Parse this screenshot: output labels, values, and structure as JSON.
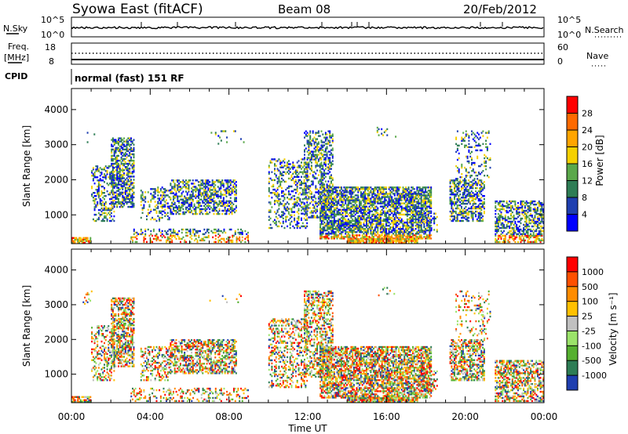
{
  "header": {
    "station": "Syowa East (fitACF)",
    "beam": "Beam 08",
    "date": "20/Feb/2012"
  },
  "top_panels": {
    "nsky_label": "N.Sky",
    "nsearch_label": "N.Search",
    "nsky_ticks": [
      "10^5",
      "10^0"
    ],
    "nsearch_ticks": [
      "10^5",
      "10^0"
    ],
    "freq_label": "Freq.",
    "freq_unit": "[MHz]",
    "freq_ticks": [
      "18",
      "8"
    ],
    "nave_label": "Nave",
    "nave_ticks": [
      "60",
      "0"
    ],
    "cpid_label": "CPID",
    "cpid_text": "normal (fast) 151 RF"
  },
  "chart_data": [
    {
      "type": "heatmap",
      "name": "power",
      "xlabel": "",
      "ylabel": "Slant Range [km]",
      "x_ticks": [],
      "y_ticks": [
        "1000",
        "2000",
        "3000",
        "4000"
      ],
      "ylim": [
        180,
        4600
      ],
      "xlim_hours": [
        0,
        24
      ],
      "colorbar": {
        "label": "Power [dB]",
        "ticks": [
          "4",
          "8",
          "12",
          "16",
          "20",
          "24",
          "28"
        ],
        "colors": [
          "#0000ff",
          "#1f3fb0",
          "#2e7d55",
          "#5aa84a",
          "#f5d000",
          "#ffa500",
          "#ff6a00",
          "#ff0000"
        ]
      }
    },
    {
      "type": "heatmap",
      "name": "velocity",
      "xlabel": "Time UT",
      "ylabel": "Slant Range [km]",
      "x_ticks": [
        "00:00",
        "04:00",
        "08:00",
        "12:00",
        "16:00",
        "20:00",
        "00:00"
      ],
      "y_ticks": [
        "1000",
        "2000",
        "3000",
        "4000"
      ],
      "ylim": [
        180,
        4600
      ],
      "xlim_hours": [
        0,
        24
      ],
      "colorbar": {
        "label": "Velocity [m s⁻¹]",
        "ticks": [
          "1000",
          "500",
          "100",
          "25",
          "-25",
          "-100",
          "-500",
          "-1000"
        ],
        "colors": [
          "#1f3fb0",
          "#2e7d55",
          "#55b030",
          "#9be36a",
          "#c0c0c0",
          "#ffc000",
          "#ff8c00",
          "#ff5000",
          "#ff0000"
        ]
      }
    }
  ]
}
